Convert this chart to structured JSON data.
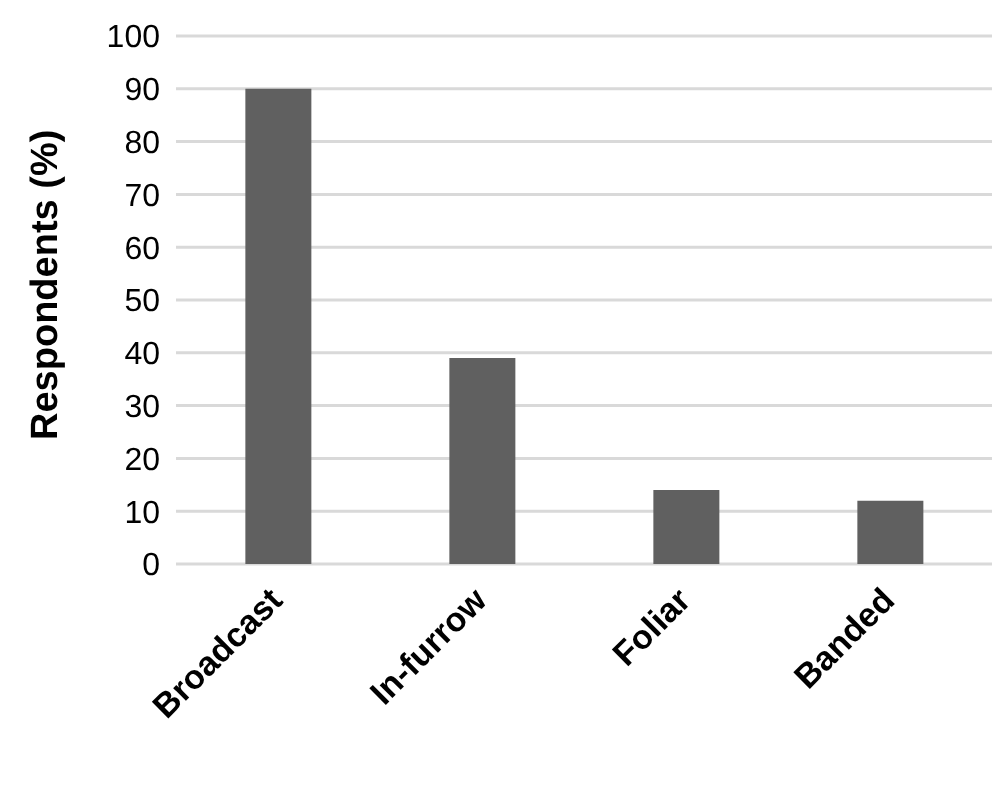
{
  "chart_data": {
    "type": "bar",
    "ylabel": "Respondents (%)",
    "categories": [
      "Broadcast",
      "In-furrow",
      "Foliar",
      "Banded"
    ],
    "values": [
      90,
      39,
      14,
      12
    ],
    "color": "#606060",
    "ylim": [
      0,
      100
    ],
    "yticks": [
      0,
      10,
      20,
      30,
      40,
      50,
      60,
      70,
      80,
      90,
      100
    ],
    "grid": "y"
  }
}
